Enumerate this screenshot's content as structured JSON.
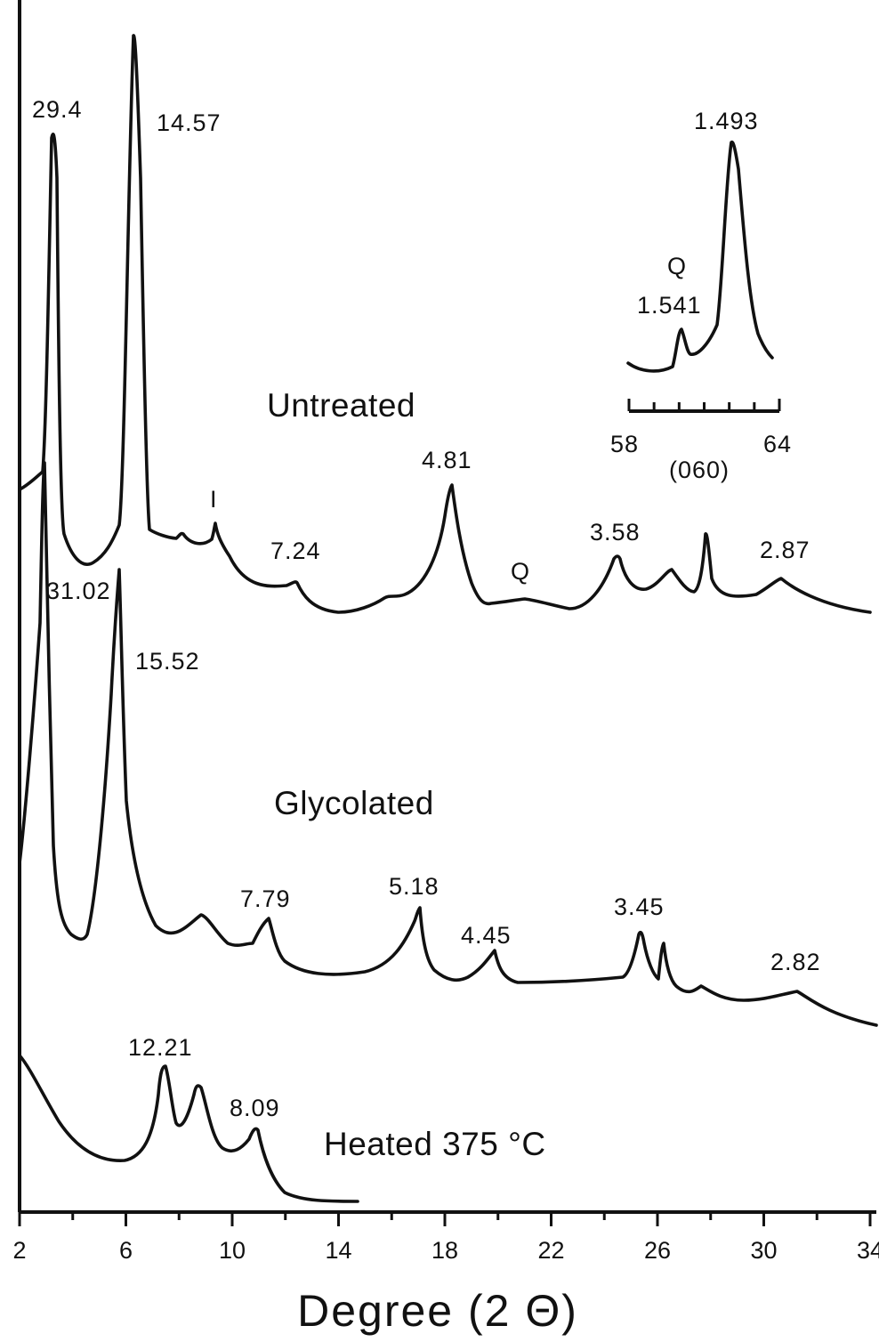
{
  "chart_data": {
    "type": "line",
    "xlabel": "Degree (2 Θ)",
    "xlim": [
      2,
      34
    ],
    "x_ticks": [
      "2",
      "6",
      "10",
      "14",
      "18",
      "22",
      "26",
      "30",
      "34"
    ],
    "yaxis": "offset intensity, no numeric scale",
    "series": [
      {
        "name": "Untreated",
        "peaks": [
          {
            "x": 3.0,
            "label": "29.4"
          },
          {
            "x": 6.1,
            "label": "14.57"
          },
          {
            "x": 9.1,
            "label": "I"
          },
          {
            "x": 12.2,
            "label": "7.24"
          },
          {
            "x": 18.4,
            "label": "4.81"
          },
          {
            "x": 21.0,
            "label": "Q"
          },
          {
            "x": 24.8,
            "label": "3.58"
          },
          {
            "x": 31.0,
            "label": "2.87"
          }
        ]
      },
      {
        "name": "Glycolated",
        "peaks": [
          {
            "x": 2.9,
            "label": "31.02"
          },
          {
            "x": 5.7,
            "label": "15.52"
          },
          {
            "x": 11.3,
            "label": "7.79"
          },
          {
            "x": 17.1,
            "label": "5.18"
          },
          {
            "x": 20.0,
            "label": "4.45"
          },
          {
            "x": 25.8,
            "label": "3.45"
          },
          {
            "x": 31.5,
            "label": "2.82"
          }
        ]
      },
      {
        "name": "Heated 375 °C",
        "peaks": [
          {
            "x": 7.2,
            "label": "12.21"
          },
          {
            "x": 11.0,
            "label": "8.09"
          }
        ]
      }
    ],
    "inset": {
      "xlim": [
        58,
        64
      ],
      "tick_labels": [
        "58",
        "64"
      ],
      "reflection": "(060)",
      "peaks": [
        {
          "x": 60.0,
          "label": "1.541",
          "marker": "Q"
        },
        {
          "x": 62.5,
          "label": "1.493"
        }
      ]
    }
  }
}
